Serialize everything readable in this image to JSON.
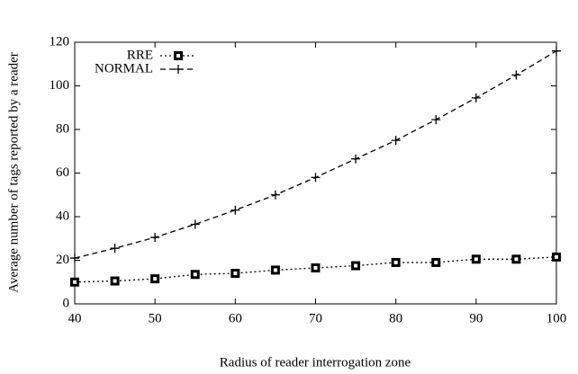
{
  "chart_data": {
    "type": "line",
    "xlabel": "Radius of reader interrogation zone",
    "ylabel": "Average number of tags reported by a reader",
    "x": [
      40,
      45,
      50,
      55,
      60,
      65,
      70,
      75,
      80,
      85,
      90,
      95,
      100
    ],
    "series": [
      {
        "name": "RRE",
        "color": "#000000",
        "marker": "square",
        "dash": "dotted",
        "values": [
          10,
          10.5,
          11.5,
          13.5,
          14,
          15.5,
          16.5,
          17.5,
          19,
          19,
          20.5,
          20.5,
          21.5
        ]
      },
      {
        "name": "NORMAL",
        "color": "#000000",
        "marker": "plus",
        "dash": "dashed",
        "values": [
          21,
          25.5,
          30.5,
          36.5,
          43,
          50,
          58,
          66.5,
          75,
          84.5,
          94.5,
          105,
          116
        ]
      }
    ],
    "xlim": [
      40,
      100
    ],
    "xticks": [
      40,
      50,
      60,
      70,
      80,
      90,
      100
    ],
    "ylim": [
      0,
      120
    ],
    "yticks": [
      0,
      20,
      40,
      60,
      80,
      100,
      120
    ],
    "legend": "upper left",
    "grid": false
  }
}
